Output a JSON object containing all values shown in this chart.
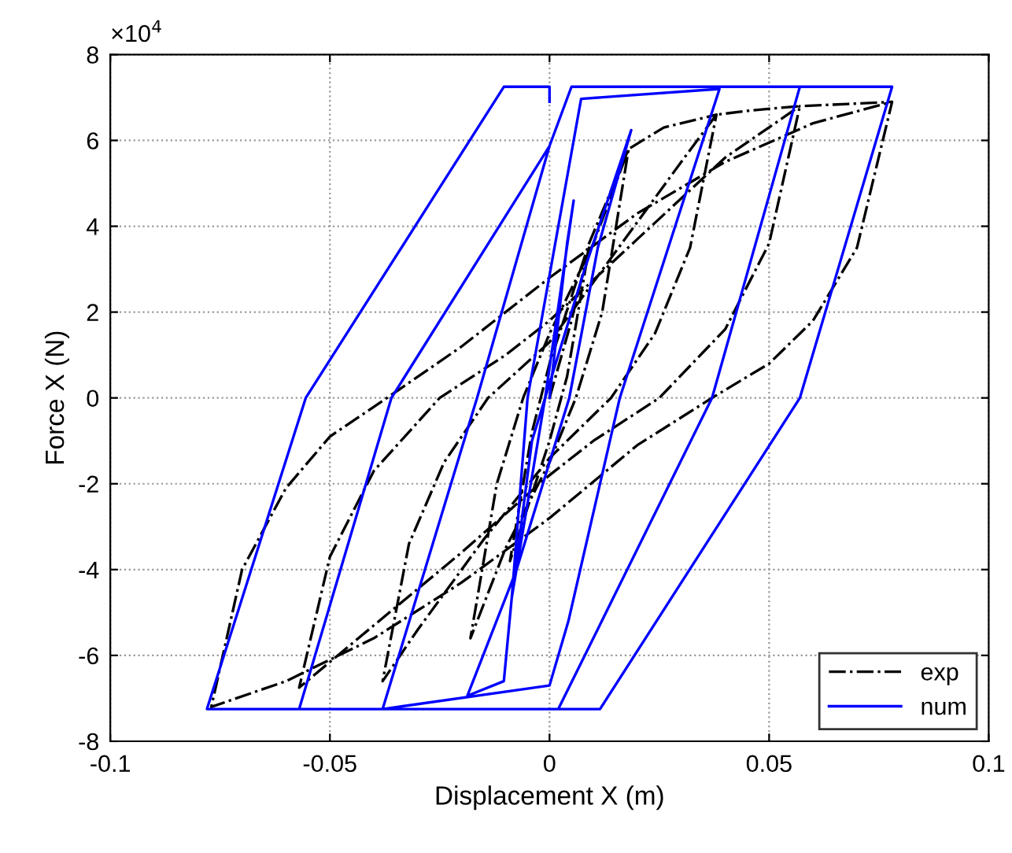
{
  "chart_data": {
    "type": "line",
    "xlabel": "Displacement X (m)",
    "ylabel": "Force X (N)",
    "annotations": [
      "×10$^{4}$"
    ],
    "xlim": [
      -0.1,
      0.1
    ],
    "xticks": [
      -0.1,
      -0.05,
      0,
      0.05,
      0.1
    ],
    "ylim": [
      -8,
      8
    ],
    "yticks": [
      -8,
      -6,
      -4,
      -2,
      0,
      2,
      4,
      6,
      8
    ],
    "grid": true,
    "legend": "bottom right",
    "series": [
      {
        "name": "exp",
        "color": "#000000",
        "line_style": "dashdot",
        "x": [
          0,
          0.005,
          0.009,
          0.004,
          0,
          -0.009,
          -0.004,
          0,
          0.009,
          0.018,
          0.012,
          0.006,
          0,
          -0.01,
          -0.018,
          -0.012,
          -0.006,
          0,
          0.01,
          0.018,
          0.026,
          0.038,
          0.032,
          0.024,
          0.014,
          0,
          -0.015,
          -0.03,
          -0.038,
          -0.032,
          -0.024,
          -0.014,
          0,
          0.015,
          0.03,
          0.038,
          0.046,
          0.057,
          0.05,
          0.04,
          0.025,
          0.01,
          0,
          -0.02,
          -0.04,
          -0.057,
          -0.05,
          -0.04,
          -0.025,
          -0.01,
          0,
          0.02,
          0.04,
          0.057,
          0.068,
          0.078,
          0.07,
          0.06,
          0.05,
          0.037,
          0.02,
          0,
          -0.02,
          -0.04,
          -0.06,
          -0.077,
          -0.07,
          -0.06,
          -0.05,
          -0.037,
          -0.02,
          0,
          0.02,
          0.04,
          0.06,
          0.078
        ],
        "values": [
          0,
          1.8,
          3.5,
          0.5,
          -1.0,
          -3.8,
          -0.8,
          0.8,
          3.6,
          5.8,
          2.0,
          0,
          -1.5,
          -3.5,
          -5.6,
          -2.0,
          0,
          1.5,
          3.6,
          5.8,
          6.3,
          6.6,
          3.5,
          1.5,
          0,
          -1.4,
          -3.3,
          -5.4,
          -6.6,
          -3.4,
          -1.5,
          0,
          1.3,
          3.4,
          5.5,
          6.6,
          6.7,
          6.8,
          3.6,
          1.6,
          0,
          -1.0,
          -1.8,
          -3.6,
          -5.3,
          -6.75,
          -3.7,
          -1.7,
          0,
          1.0,
          1.8,
          3.7,
          5.6,
          6.8,
          6.85,
          6.9,
          3.5,
          1.8,
          0.8,
          0,
          -1.1,
          -2.8,
          -4.3,
          -5.6,
          -6.6,
          -7.2,
          -4.0,
          -2.1,
          -0.9,
          0,
          1.2,
          2.8,
          4.3,
          5.5,
          6.4,
          6.9
        ]
      },
      {
        "name": "num",
        "color": "#0000ff",
        "line_style": "solid",
        "x": [
          0,
          0.004,
          0.0055,
          -0.001,
          -0.0086,
          -0.004,
          0.008,
          0.0186,
          0.011,
          0.0045,
          -0.0075,
          -0.0187,
          -0.0104,
          -0.0086,
          -0.005,
          0.0072,
          0.0387,
          0.016,
          0.0043,
          0,
          -0.038,
          -0.0165,
          0,
          0.005,
          0.057,
          0.037,
          0.002,
          -0.057,
          -0.036,
          0,
          0.005,
          0.078,
          0.057,
          0.0115,
          -0.078,
          -0.0555,
          -0.0104,
          0,
          0
        ],
        "values": [
          0,
          3.6,
          4.6,
          0,
          -4.66,
          -1.0,
          3.0,
          6.24,
          3.5,
          0,
          -4.0,
          -6.94,
          -6.6,
          -4.66,
          0,
          6.97,
          7.2,
          0,
          -5.2,
          -6.7,
          -7.25,
          0,
          5.87,
          7.25,
          7.25,
          0,
          -7.25,
          -7.25,
          0,
          5.87,
          7.25,
          7.25,
          0,
          -7.25,
          -7.25,
          0,
          7.25,
          7.25,
          6.9
        ]
      }
    ]
  }
}
